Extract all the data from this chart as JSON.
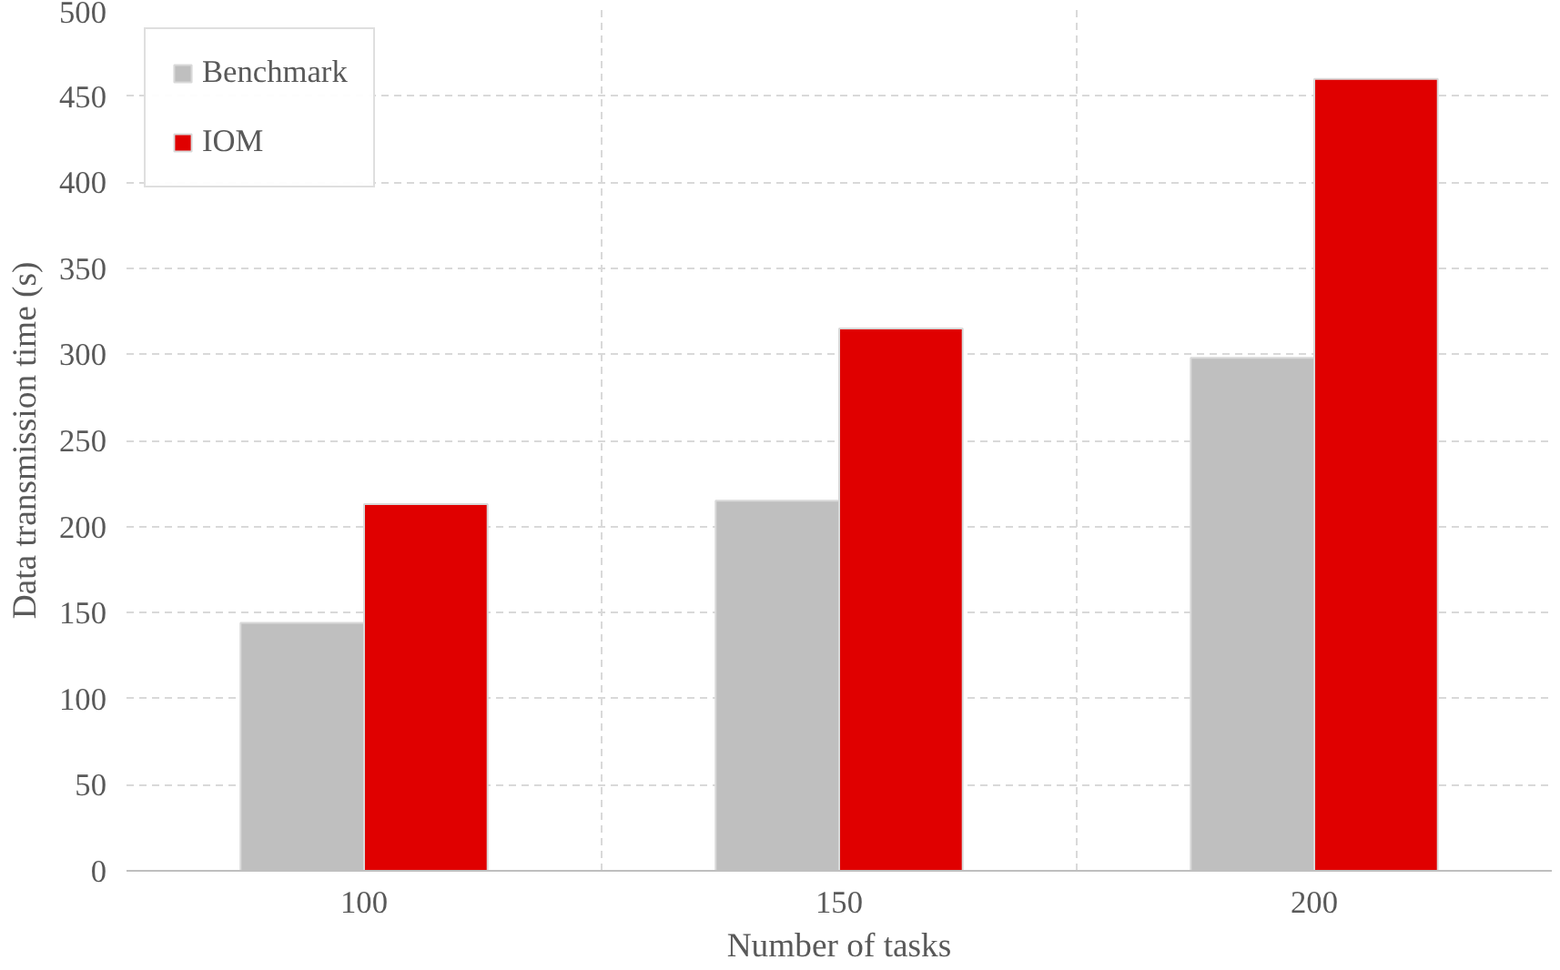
{
  "chart_data": {
    "type": "bar",
    "xlabel": "Number of tasks",
    "ylabel": "Data transmission time (s)",
    "categories": [
      "100",
      "150",
      "200"
    ],
    "series": [
      {
        "name": "Benchmark",
        "color": "#bfbfbf",
        "values": [
          144,
          215,
          298
        ]
      },
      {
        "name": "IOM",
        "color": "#e00000",
        "values": [
          213,
          315,
          460
        ]
      }
    ],
    "ylim": [
      0,
      500
    ],
    "yticks": [
      0,
      50,
      100,
      150,
      200,
      250,
      300,
      350,
      400,
      450,
      500
    ],
    "grid": true,
    "legend": "top left"
  }
}
